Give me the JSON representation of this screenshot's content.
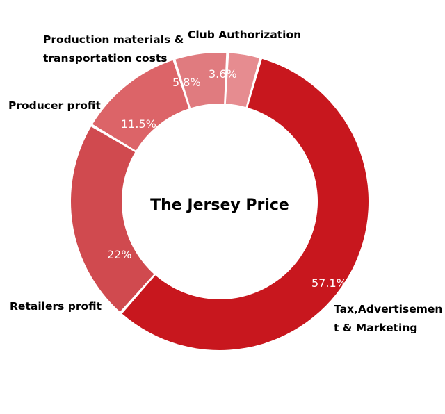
{
  "chart_data": {
    "type": "pie",
    "title": "The Jersey Price",
    "categories": [
      "Tax,Advertisement & Marketing",
      "Retailers profit",
      "Producer profit",
      "Production materials & transportation costs",
      "Club Authorization"
    ],
    "values": [
      57.1,
      22,
      11.5,
      5.8,
      3.6
    ],
    "value_labels": [
      "57.1%",
      "22%",
      "11.5%",
      "5.8%",
      "3.6%"
    ],
    "category_label_lines": [
      [
        "Tax,Advertisemen",
        "t & Marketing"
      ],
      [
        "Retailers profit"
      ],
      [
        "Producer profit"
      ],
      [
        "Production materials &",
        "transportation costs"
      ],
      [
        "Club Authorization"
      ]
    ],
    "colors": [
      "#c8171e",
      "#d04a4f",
      "#dc6468",
      "#e07b7f",
      "#e68c90"
    ],
    "donut": true,
    "legend": "none"
  }
}
